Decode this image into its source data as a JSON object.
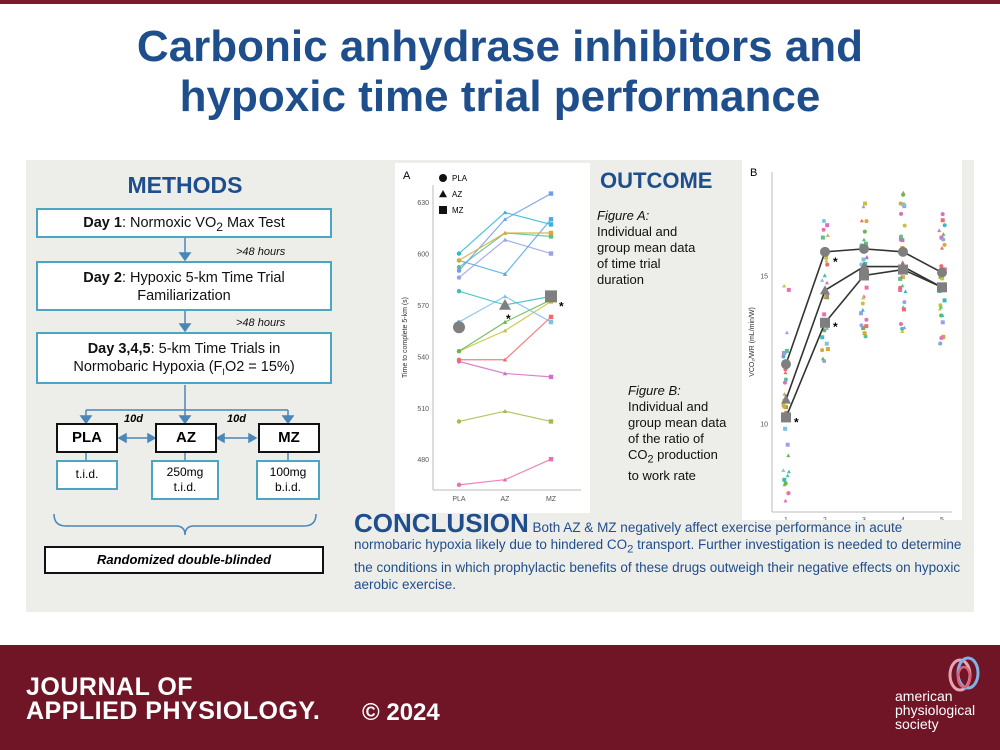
{
  "title": {
    "line1": "Carbonic anhydrase inhibitors and",
    "line2": "hypoxic time trial performance"
  },
  "methods": {
    "heading": "METHODS",
    "day1": {
      "label": "Day 1",
      "text": ": Normoxic VO",
      "sub": "2",
      "text2": " Max Test"
    },
    "gap1": ">48 hours",
    "day2": {
      "label": "Day 2",
      "text": ": Hypoxic 5-km Time Trial",
      "line2": "Familiarization"
    },
    "gap2": ">48 hours",
    "day3": {
      "label": "Day 3,4,5",
      "text": ": 5-km Time Trials in",
      "line2a": "Normobaric Hypoxia (F",
      "sub": "I",
      "line2b": "O2 = 15%)"
    },
    "arms": [
      "PLA",
      "AZ",
      "MZ"
    ],
    "interval": "10d",
    "doses": [
      {
        "line1": "t.i.d.",
        "line2": ""
      },
      {
        "line1": "250mg",
        "line2": "t.i.d."
      },
      {
        "line1": "100mg",
        "line2": "b.i.d."
      }
    ],
    "design": "Randomized double-blinded"
  },
  "outcome": {
    "heading": "OUTCOME",
    "figA": {
      "title": "Figure A:",
      "line1": "Individual and",
      "line2": "group mean data",
      "line3": "of time trial",
      "line4": "duration"
    },
    "figB": {
      "title": "Figure B:",
      "line1": "Individual and",
      "line2": "group mean data",
      "line3": "of the ratio of",
      "line4a": "CO",
      "line4sub": "2",
      "line4b": " production",
      "line5": "to work rate"
    }
  },
  "conclusion": {
    "heading": "CONCLUSION",
    "text1": " Both AZ & MZ negatively affect exercise performance in acute normobaric hypoxia likely due to hindered CO",
    "sub": "2",
    "text2": " transport. Further investigation is needed to determine the conditions in which prophylactic benefits of these drugs outweigh their negative effects on hypoxic aerobic exercise."
  },
  "footer": {
    "journal_line1": "JOURNAL OF",
    "journal_line2": "APPLIED PHYSIOLOGY.",
    "copyright": "© 2024",
    "society_line1": "american",
    "society_line2": "physiological",
    "society_line3": "society"
  },
  "chart_data": [
    {
      "type": "line",
      "panel_label": "A",
      "categories": [
        "PLA",
        "AZ",
        "MZ"
      ],
      "ylabel": "Time to complete 5-km (s)",
      "yticks": [
        480,
        510,
        540,
        570,
        600,
        630
      ],
      "ylim": [
        462,
        640
      ],
      "legend": [
        "PLA",
        "AZ",
        "MZ"
      ],
      "series": [
        {
          "color": "#e86fb0",
          "values": [
            465,
            468,
            480
          ]
        },
        {
          "color": "#a8b94a",
          "values": [
            502,
            508,
            502
          ]
        },
        {
          "color": "#d56fc4",
          "values": [
            537,
            530,
            528
          ]
        },
        {
          "color": "#f06a6a",
          "values": [
            538,
            538,
            563
          ]
        },
        {
          "color": "#c9c13c",
          "values": [
            543,
            555,
            572
          ]
        },
        {
          "color": "#68b84c",
          "values": [
            543,
            560,
            573
          ]
        },
        {
          "color": "#7fc0e0",
          "values": [
            560,
            575,
            560
          ]
        },
        {
          "color": "#3abcc0",
          "values": [
            578,
            570,
            575
          ]
        },
        {
          "color": "#55c28a",
          "values": [
            592,
            612,
            610
          ]
        },
        {
          "color": "#9aa0e6",
          "values": [
            586,
            608,
            600
          ]
        },
        {
          "color": "#4fa9e6",
          "values": [
            596,
            588,
            620
          ]
        },
        {
          "color": "#2fb7d3",
          "values": [
            600,
            624,
            617
          ]
        },
        {
          "color": "#6f9ef0",
          "values": [
            590,
            620,
            635
          ]
        },
        {
          "color": "#d6a93a",
          "values": [
            596,
            612,
            612
          ]
        }
      ],
      "group_means": [
        {
          "name": "PLA",
          "values": [
            557,
            null,
            null
          ]
        },
        {
          "name": "AZ",
          "values": [
            null,
            570,
            null
          ]
        },
        {
          "name": "MZ",
          "values": [
            null,
            null,
            575
          ]
        }
      ],
      "annotations": [
        "*",
        "*"
      ]
    },
    {
      "type": "scatter",
      "panel_label": "B",
      "xlabel": "Distance (km)",
      "ylabel": "VCO₂/WR (mL/min/W)",
      "x": [
        1,
        2,
        3,
        4,
        5
      ],
      "yticks": [
        10,
        15
      ],
      "ylim": [
        7,
        18.5
      ],
      "series": [
        {
          "name": "PLA",
          "values": [
            12.0,
            15.8,
            15.9,
            15.8,
            15.1
          ]
        },
        {
          "name": "AZ",
          "values": [
            10.8,
            14.5,
            15.3,
            15.3,
            14.6
          ]
        },
        {
          "name": "MZ",
          "values": [
            10.2,
            13.4,
            15.0,
            15.2,
            14.6
          ]
        }
      ],
      "annotations": [
        "*",
        "*",
        "*"
      ]
    }
  ],
  "colors": {
    "title_blue": "#1f4e8c",
    "box_border": "#4aa6c4",
    "footer": "#6f1526",
    "panel": "#ededea"
  }
}
